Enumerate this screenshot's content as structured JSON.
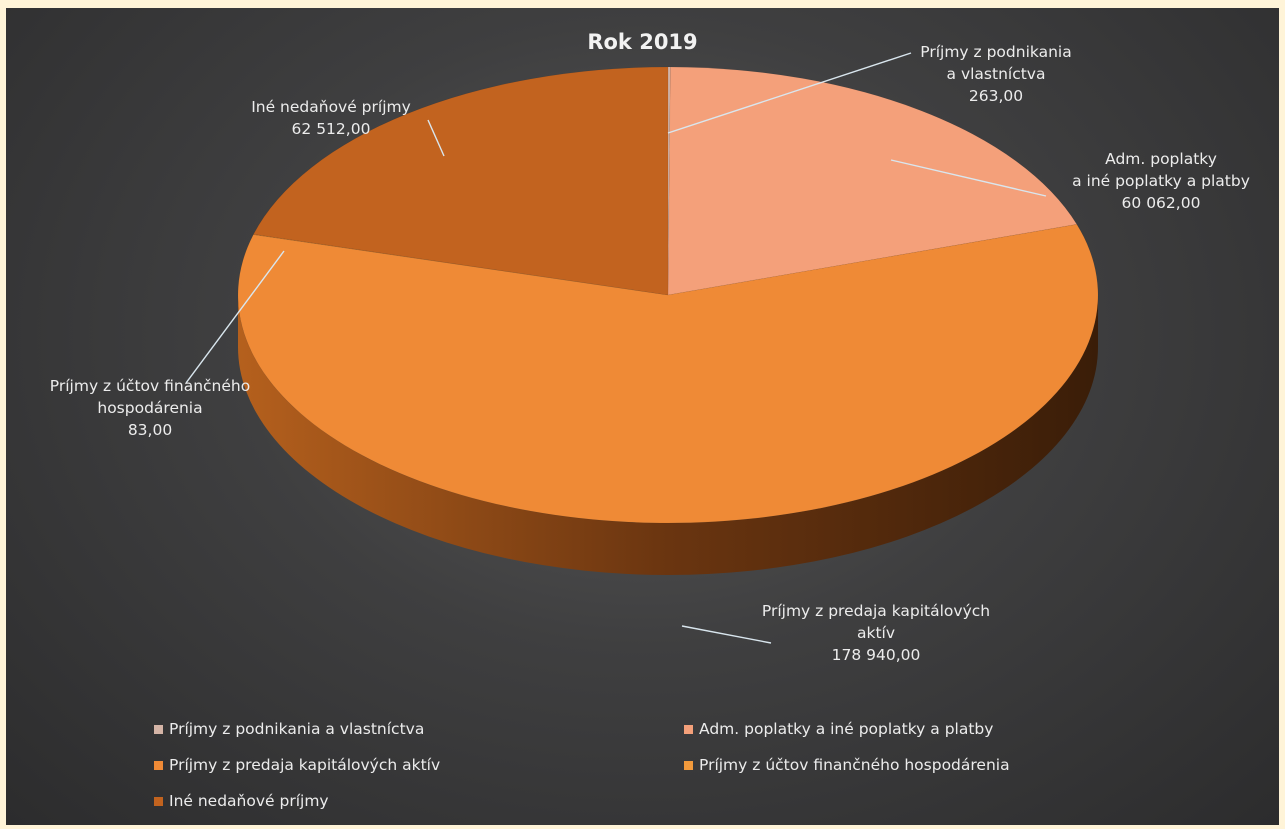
{
  "chart_data": {
    "type": "pie",
    "title": "Rok 2019",
    "style": "3d",
    "legend_position": "bottom",
    "slices": [
      {
        "name": "Príjmy z podnikania a vlastníctva",
        "value": 263.0,
        "label": "Príjmy z podnikania\na vlastníctva\n263,00",
        "color": "#d4b4a6"
      },
      {
        "name": "Adm. poplatky a iné poplatky a platby",
        "value": 60062.0,
        "label": "Adm. poplatky\na iné poplatky a platby\n60 062,00",
        "color": "#f4a07a"
      },
      {
        "name": "Príjmy z predaja kapitálových aktív",
        "value": 178940.0,
        "label": "Príjmy z predaja kapitálových\naktív\n178 940,00",
        "color": "#ef8a36"
      },
      {
        "name": "Príjmy z účtov finančného hospodárenia",
        "value": 83.0,
        "label": "Príjmy z účtov finančného\nhospodárenia\n83,00",
        "color": "#f29a3c"
      },
      {
        "name": "Iné nedaňové príjmy",
        "value": 62512.0,
        "label": "Iné nedaňové príjmy\n62 512,00",
        "color": "#c2631f"
      }
    ]
  }
}
